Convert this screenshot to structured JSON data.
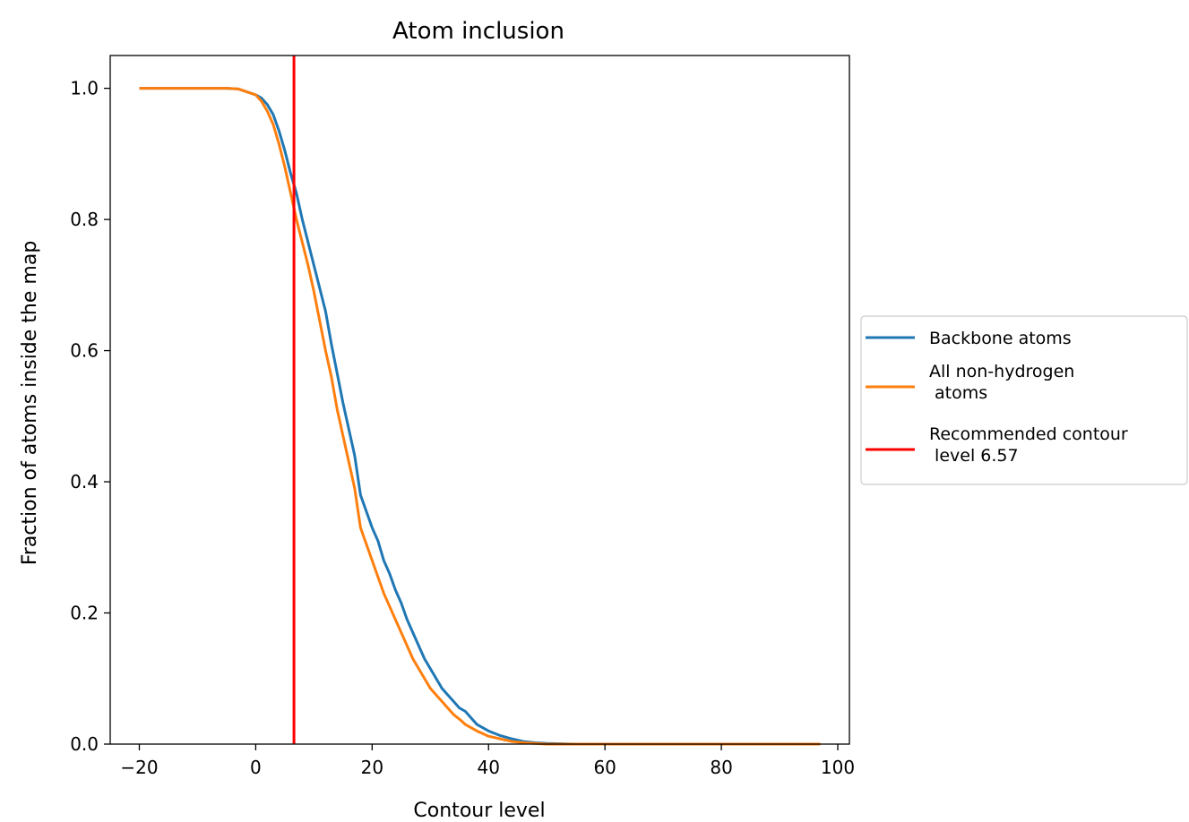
{
  "chart_data": {
    "type": "line",
    "title": "Atom inclusion",
    "xlabel": "Contour level",
    "ylabel": "Fraction of atoms inside the map",
    "xlim": [
      -25,
      102
    ],
    "ylim": [
      0,
      1.05
    ],
    "xticks": [
      -20,
      0,
      20,
      40,
      60,
      80,
      100
    ],
    "yticks": [
      0.0,
      0.2,
      0.4,
      0.6,
      0.8,
      1.0
    ],
    "xtick_labels": [
      "−20",
      "0",
      "20",
      "40",
      "60",
      "80",
      "100"
    ],
    "ytick_labels": [
      "0.0",
      "0.2",
      "0.4",
      "0.6",
      "0.8",
      "1.0"
    ],
    "grid": false,
    "legend_position": "outside-right",
    "series": [
      {
        "name": "Backbone atoms",
        "color": "#1f77b4",
        "x": [
          -20,
          -15,
          -10,
          -5,
          -3,
          0,
          1,
          2,
          3,
          4,
          5,
          6,
          7,
          8,
          9,
          10,
          11,
          12,
          13,
          14,
          15,
          16,
          17,
          18,
          19,
          20,
          21,
          22,
          23,
          24,
          25,
          26,
          27,
          28,
          29,
          30,
          31,
          32,
          33,
          34,
          35,
          36,
          37,
          38,
          39,
          40,
          42,
          44,
          46,
          48,
          50,
          55,
          60,
          70,
          80,
          90,
          97
        ],
        "y": [
          1.0,
          1.0,
          1.0,
          1.0,
          0.999,
          0.99,
          0.985,
          0.975,
          0.96,
          0.935,
          0.905,
          0.87,
          0.84,
          0.8,
          0.765,
          0.73,
          0.695,
          0.66,
          0.61,
          0.565,
          0.52,
          0.48,
          0.44,
          0.38,
          0.355,
          0.33,
          0.31,
          0.28,
          0.26,
          0.235,
          0.215,
          0.19,
          0.17,
          0.15,
          0.13,
          0.115,
          0.1,
          0.085,
          0.075,
          0.065,
          0.055,
          0.05,
          0.04,
          0.03,
          0.025,
          0.02,
          0.013,
          0.008,
          0.004,
          0.002,
          0.001,
          0.0,
          0.0,
          0.0,
          0.0,
          0.0,
          0.0
        ]
      },
      {
        "name": "All non-hydrogen\n atoms",
        "color": "#ff7f0e",
        "x": [
          -20,
          -15,
          -10,
          -5,
          -3,
          0,
          1,
          2,
          3,
          4,
          5,
          6,
          7,
          8,
          9,
          10,
          11,
          12,
          13,
          14,
          15,
          16,
          17,
          18,
          19,
          20,
          21,
          22,
          23,
          24,
          25,
          26,
          27,
          28,
          29,
          30,
          31,
          32,
          33,
          34,
          35,
          36,
          37,
          38,
          39,
          40,
          42,
          44,
          46,
          48,
          50,
          55,
          60,
          70,
          80,
          90,
          97
        ],
        "y": [
          1.0,
          1.0,
          1.0,
          1.0,
          0.999,
          0.99,
          0.98,
          0.965,
          0.945,
          0.915,
          0.88,
          0.84,
          0.8,
          0.765,
          0.73,
          0.69,
          0.645,
          0.6,
          0.56,
          0.51,
          0.47,
          0.43,
          0.39,
          0.33,
          0.305,
          0.28,
          0.255,
          0.23,
          0.21,
          0.19,
          0.17,
          0.15,
          0.13,
          0.115,
          0.1,
          0.085,
          0.075,
          0.065,
          0.055,
          0.045,
          0.038,
          0.03,
          0.025,
          0.02,
          0.016,
          0.012,
          0.008,
          0.004,
          0.002,
          0.001,
          0.0,
          0.0,
          0.0,
          0.0,
          0.0,
          0.0,
          0.0
        ]
      }
    ],
    "vline": {
      "name": "Recommended contour\n level 6.57",
      "x": 6.57,
      "color": "#ff0000"
    }
  }
}
